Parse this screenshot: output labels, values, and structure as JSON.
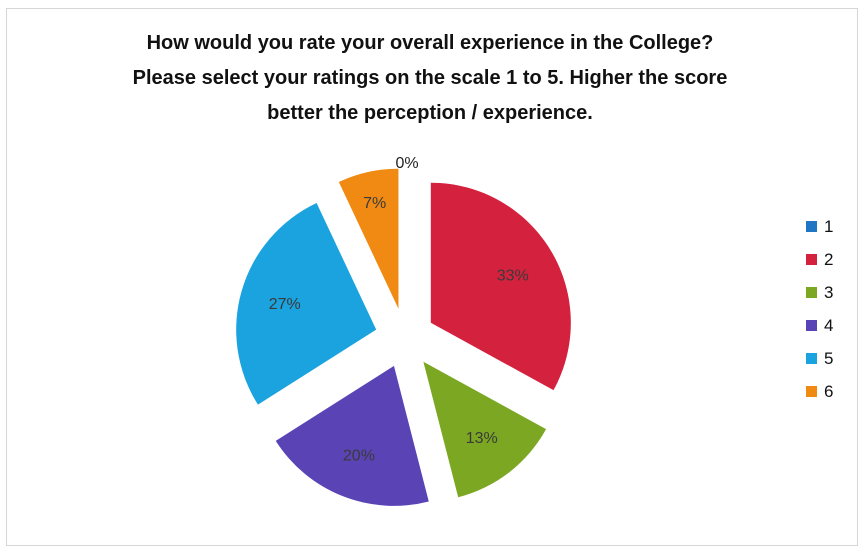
{
  "chart_data": {
    "type": "pie",
    "title": "How would you rate your overall experience in the College?\nPlease select your ratings on the scale 1 to 5. Higher the score\nbetter the perception / experience.",
    "categories": [
      "1",
      "2",
      "3",
      "4",
      "5",
      "6"
    ],
    "values": [
      0,
      33,
      13,
      20,
      27,
      7
    ],
    "labels": [
      "0%",
      "33%",
      "13%",
      "20%",
      "27%",
      "7%"
    ],
    "colors": [
      "#1f77c4",
      "#d4213d",
      "#7ba722",
      "#5a44b5",
      "#1aa3de",
      "#f08a13"
    ],
    "legend_position": "right",
    "exploded": true
  }
}
